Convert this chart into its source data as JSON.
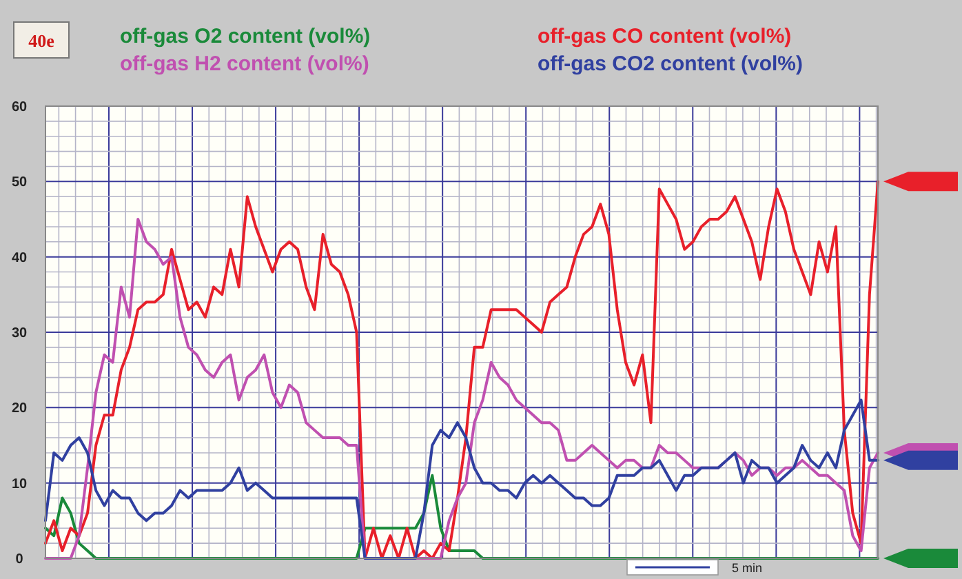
{
  "chart_data": {
    "type": "line",
    "categories": [
      null,
      null,
      null,
      null,
      null,
      null,
      null,
      null,
      null,
      null,
      null,
      null,
      null,
      null,
      null,
      null,
      null,
      null,
      null,
      null,
      null,
      null,
      null,
      null,
      null,
      null,
      null,
      null,
      null,
      null,
      null,
      null,
      null,
      null,
      null,
      null,
      null,
      null,
      null,
      null,
      null,
      null,
      null,
      null,
      null,
      null,
      null,
      null,
      null,
      null,
      null,
      null,
      null,
      null,
      null,
      null,
      null,
      null,
      null,
      null,
      null,
      null,
      null,
      null,
      null,
      null,
      null,
      null,
      null,
      null,
      null,
      null,
      null,
      null,
      null,
      null,
      null,
      null,
      null,
      null,
      null,
      null,
      null,
      null,
      null,
      null,
      null,
      null,
      null,
      null,
      null,
      null,
      null,
      null,
      null,
      null,
      null,
      null,
      null,
      null
    ],
    "series": [
      {
        "name": "off-gas O2 content (vol%)",
        "color": "#1a8a3a",
        "values": [
          4,
          3,
          8,
          6,
          2,
          1,
          0,
          0,
          0,
          0,
          0,
          0,
          0,
          0,
          0,
          0,
          0,
          0,
          0,
          0,
          0,
          0,
          0,
          0,
          0,
          0,
          0,
          0,
          0,
          0,
          0,
          0,
          0,
          0,
          0,
          0,
          0,
          0,
          4,
          4,
          4,
          4,
          4,
          4,
          4,
          6,
          11,
          4,
          1,
          1,
          1,
          1,
          0,
          0,
          0,
          0,
          0,
          0,
          0,
          0,
          0,
          0,
          0,
          0,
          0,
          0,
          0,
          0,
          0,
          0,
          0,
          0,
          0,
          0,
          0,
          0,
          0,
          0,
          0,
          0,
          0,
          0,
          0,
          0,
          0,
          0,
          0,
          0,
          0,
          0,
          0,
          0,
          0,
          0,
          0,
          0,
          0,
          0,
          0,
          0
        ]
      },
      {
        "name": "off-gas CO content (vol%)",
        "color": "#e8202a",
        "values": [
          2,
          5,
          1,
          4,
          3,
          6,
          15,
          19,
          19,
          25,
          28,
          33,
          34,
          34,
          35,
          41,
          37,
          33,
          34,
          32,
          36,
          35,
          41,
          36,
          48,
          44,
          41,
          38,
          41,
          42,
          41,
          36,
          33,
          43,
          39,
          38,
          35,
          30,
          0,
          4,
          0,
          3,
          0,
          4,
          0,
          1,
          0,
          2,
          1,
          8,
          16,
          28,
          28,
          33,
          33,
          33,
          33,
          32,
          31,
          30,
          34,
          35,
          36,
          40,
          43,
          44,
          47,
          43,
          33,
          26,
          23,
          27,
          18,
          49,
          47,
          45,
          41,
          42,
          44,
          45,
          45,
          46,
          48,
          45,
          42,
          37,
          44,
          49,
          46,
          41,
          38,
          35,
          42,
          38,
          44,
          17,
          6,
          2,
          35,
          50
        ]
      },
      {
        "name": "off-gas H2 content (vol%)",
        "color": "#c050b0",
        "values": [
          0,
          0,
          0,
          0,
          3,
          12,
          22,
          27,
          26,
          36,
          32,
          45,
          42,
          41,
          39,
          40,
          32,
          28,
          27,
          25,
          24,
          26,
          27,
          21,
          24,
          25,
          27,
          22,
          20,
          23,
          22,
          18,
          17,
          16,
          16,
          16,
          15,
          15,
          0,
          0,
          0,
          0,
          0,
          0,
          0,
          0,
          0,
          0,
          5,
          8,
          10,
          18,
          21,
          26,
          24,
          23,
          21,
          20,
          19,
          18,
          18,
          17,
          13,
          13,
          14,
          15,
          14,
          13,
          12,
          13,
          13,
          12,
          12,
          15,
          14,
          14,
          13,
          12,
          12,
          12,
          12,
          13,
          14,
          13,
          11,
          12,
          12,
          11,
          12,
          12,
          13,
          12,
          11,
          11,
          10,
          9,
          3,
          1,
          12,
          14
        ]
      },
      {
        "name": "off-gas CO2 content (vol%)",
        "color": "#3040a0",
        "values": [
          5,
          14,
          13,
          15,
          16,
          14,
          9,
          7,
          9,
          8,
          8,
          6,
          5,
          6,
          6,
          7,
          9,
          8,
          9,
          9,
          9,
          9,
          10,
          12,
          9,
          10,
          9,
          8,
          8,
          8,
          8,
          8,
          8,
          8,
          8,
          8,
          8,
          8,
          0,
          0,
          0,
          0,
          0,
          0,
          0,
          6,
          15,
          17,
          16,
          18,
          16,
          12,
          10,
          10,
          9,
          9,
          8,
          10,
          11,
          10,
          11,
          10,
          9,
          8,
          8,
          7,
          7,
          8,
          11,
          11,
          11,
          12,
          12,
          13,
          11,
          9,
          11,
          11,
          12,
          12,
          12,
          13,
          14,
          10,
          13,
          12,
          12,
          10,
          11,
          12,
          15,
          13,
          12,
          14,
          12,
          17,
          19,
          21,
          13,
          13
        ]
      }
    ],
    "ylim": [
      0,
      60
    ],
    "yticks": [
      0,
      10,
      20,
      30,
      40,
      50,
      60
    ],
    "grid": true,
    "legend": "top",
    "annotations": [
      "40e",
      "5 min"
    ]
  }
}
